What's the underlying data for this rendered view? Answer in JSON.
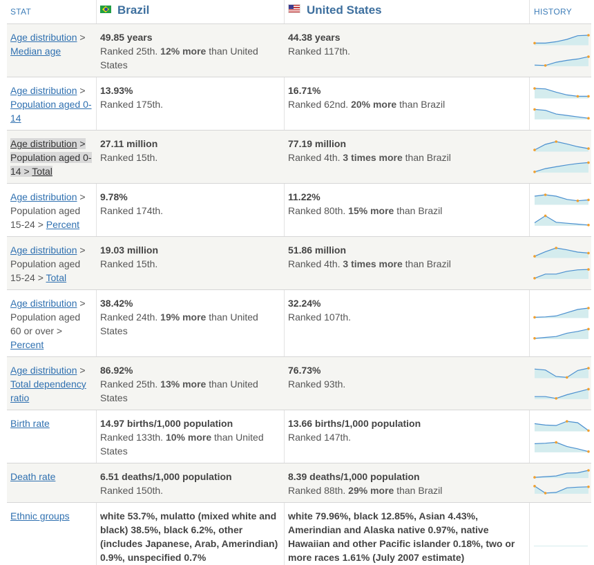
{
  "header": {
    "stat": "STAT",
    "country_a": "Brazil",
    "country_b": "United States",
    "history": "HISTORY"
  },
  "colors": {
    "link": "#2f70b0",
    "header_text": "#3d6f9e",
    "spark_line": "#4a8fcf",
    "spark_fill": "#d4ecee",
    "spark_dot": "#f0a030"
  },
  "rows": [
    {
      "stat": {
        "link1": "Age distribution",
        "sep1": " > ",
        "link2": "Median age"
      },
      "a": {
        "value": "49.85 years",
        "rank": "Ranked 25th. ",
        "cmp": "12% more",
        "rest": " than United States"
      },
      "b": {
        "value": "44.38 years",
        "rank": "Ranked 117th.",
        "cmp": "",
        "rest": ""
      },
      "spark": {
        "top": [
          0.15,
          0.15,
          0.3,
          0.55,
          0.95,
          1.0
        ],
        "bottom": [
          0.05,
          0.0,
          0.35,
          0.55,
          0.7,
          0.95
        ]
      }
    },
    {
      "stat": {
        "link1": "Age distribution",
        "sep1": " > ",
        "link2": "Population aged 0-14"
      },
      "a": {
        "value": "13.93%",
        "rank": "Ranked 175th.",
        "cmp": "",
        "rest": ""
      },
      "b": {
        "value": "16.71%",
        "rank": "Ranked 62nd. ",
        "cmp": "20% more",
        "rest": " than Brazil"
      },
      "spark": {
        "top": [
          1.0,
          0.95,
          0.6,
          0.3,
          0.15,
          0.15
        ],
        "bottom": [
          1.0,
          0.9,
          0.5,
          0.35,
          0.2,
          0.05
        ]
      }
    },
    {
      "stat": {
        "link1": "Age distribution",
        "sep1": " > ",
        "text1": "Population aged 0-14",
        "sep2": " > ",
        "link2": "Total"
      },
      "a": {
        "value": "27.11 million",
        "rank": "Ranked 15th.",
        "cmp": "",
        "rest": ""
      },
      "b": {
        "value": "77.19 million",
        "rank": "Ranked 4th. ",
        "cmp": "3 times more",
        "rest": " than Brazil"
      },
      "spark": {
        "top": [
          0.1,
          0.7,
          1.0,
          0.75,
          0.45,
          0.25
        ],
        "bottom": [
          0.0,
          0.35,
          0.55,
          0.75,
          0.9,
          1.0
        ]
      }
    },
    {
      "stat": {
        "link1": "Age distribution",
        "sep1": " > ",
        "text1": "Population aged 15-24",
        "sep2": " > ",
        "link2": "Percent"
      },
      "a": {
        "value": "9.78%",
        "rank": "Ranked 174th.",
        "cmp": "",
        "rest": ""
      },
      "b": {
        "value": "11.22%",
        "rank": "Ranked 80th. ",
        "cmp": "15% more",
        "rest": " than Brazil"
      },
      "spark": {
        "top": [
          0.85,
          1.0,
          0.85,
          0.5,
          0.35,
          0.45
        ],
        "bottom": [
          0.25,
          1.0,
          0.3,
          0.2,
          0.1,
          0.0
        ]
      }
    },
    {
      "stat": {
        "link1": "Age distribution",
        "sep1": " > ",
        "text1": "Population aged 15-24",
        "sep2": " > ",
        "link2": "Total"
      },
      "a": {
        "value": "19.03 million",
        "rank": "Ranked 15th.",
        "cmp": "",
        "rest": ""
      },
      "b": {
        "value": "51.86 million",
        "rank": "Ranked 4th. ",
        "cmp": "3 times more",
        "rest": " than Brazil"
      },
      "spark": {
        "top": [
          0.1,
          0.6,
          1.0,
          0.8,
          0.55,
          0.45
        ],
        "bottom": [
          0.0,
          0.45,
          0.45,
          0.75,
          0.9,
          0.95
        ]
      }
    },
    {
      "stat": {
        "link1": "Age distribution",
        "sep1": " > ",
        "text1": "Population aged 60 or over",
        "sep2": " > ",
        "link2": "Percent"
      },
      "a": {
        "value": "38.42%",
        "rank": "Ranked 24th. ",
        "cmp": "19% more",
        "rest": " than United States"
      },
      "b": {
        "value": "32.24%",
        "rank": "Ranked 107th.",
        "cmp": "",
        "rest": ""
      },
      "spark": {
        "top": [
          0.0,
          0.05,
          0.15,
          0.5,
          0.85,
          1.0
        ],
        "bottom": [
          0.0,
          0.1,
          0.2,
          0.55,
          0.75,
          1.0
        ]
      }
    },
    {
      "stat": {
        "link1": "Age distribution",
        "sep1": " > ",
        "link2": "Total dependency ratio"
      },
      "a": {
        "value": "86.92%",
        "rank": "Ranked 25th. ",
        "cmp": "13% more",
        "rest": " than United States"
      },
      "b": {
        "value": "76.73%",
        "rank": "Ranked 93th.",
        "cmp": "",
        "rest": ""
      },
      "spark": {
        "top": [
          0.9,
          0.8,
          0.1,
          0.0,
          0.75,
          1.0
        ],
        "bottom": [
          0.2,
          0.2,
          0.0,
          0.4,
          0.7,
          1.0
        ]
      }
    },
    {
      "stat": {
        "link1": "Birth rate"
      },
      "a": {
        "value": "14.97 births/1,000 population",
        "rank": "Ranked 133th. ",
        "cmp": "10% more",
        "rest": " than United States"
      },
      "b": {
        "value": "13.66 births/1,000 population",
        "rank": "Ranked 147th.",
        "cmp": "",
        "rest": ""
      },
      "spark": {
        "top": [
          0.75,
          0.6,
          0.55,
          1.0,
          0.85,
          0.0
        ],
        "bottom": [
          0.85,
          0.9,
          1.0,
          0.55,
          0.3,
          0.0
        ]
      }
    },
    {
      "stat": {
        "link1": "Death rate"
      },
      "a": {
        "value": "6.51 deaths/1,000 population",
        "rank": "Ranked 150th.",
        "cmp": "",
        "rest": ""
      },
      "b": {
        "value": "8.39 deaths/1,000 population",
        "rank": "Ranked 88th. ",
        "cmp": "29% more",
        "rest": " than Brazil"
      },
      "spark": {
        "top": [
          0.0,
          0.1,
          0.2,
          0.6,
          0.65,
          1.0
        ],
        "bottom": [
          1.0,
          0.0,
          0.1,
          0.75,
          0.85,
          0.9
        ]
      }
    },
    {
      "stat": {
        "link1": "Ethnic groups"
      },
      "a": {
        "value": "white 53.7%, mulatto (mixed white and black) 38.5%, black 6.2%, other (includes Japanese, Arab, Amerindian) 0.9%, unspecified 0.7%",
        "rank": "",
        "cmp": "",
        "rest": ""
      },
      "b": {
        "value": "white 79.96%, black 12.85%, Asian 4.43%, Amerindian and Alaska native 0.97%, native Hawaiian and other Pacific islander 0.18%, two or more races 1.61% (July 2007 estimate)",
        "rank": "",
        "cmp": "",
        "rest": ""
      },
      "spark": null
    }
  ]
}
